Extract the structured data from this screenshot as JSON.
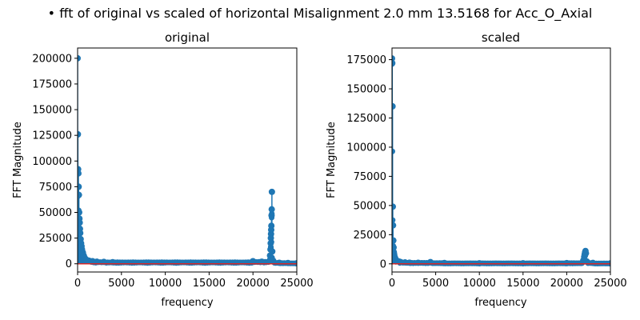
{
  "suptitle": "• fft of original vs scaled of horizontal Misalignment 2.0 mm 13.5168 for Acc_O_Axial",
  "colors": {
    "stem": "#1f77b4",
    "baseline": "#d62728",
    "axis": "#000000"
  },
  "chart_data": [
    {
      "type": "stem",
      "title": "original",
      "xlabel": "frequency",
      "ylabel": "FFT Magnitude",
      "xlim": [
        0,
        25000
      ],
      "ylim": [
        -8000,
        210000
      ],
      "xticks": [
        0,
        5000,
        10000,
        15000,
        20000,
        25000
      ],
      "yticks": [
        0,
        25000,
        50000,
        75000,
        100000,
        125000,
        150000,
        175000,
        200000
      ],
      "x": [
        0,
        30,
        60,
        90,
        120,
        150,
        180,
        210,
        240,
        270,
        300,
        350,
        400,
        450,
        500,
        600,
        700,
        800,
        1000,
        1300,
        1700,
        2200,
        3000,
        4000,
        20000,
        21000,
        21900,
        21950,
        22000,
        22020,
        22040,
        22060,
        22080,
        22100,
        22120,
        22140,
        22160,
        22200,
        22300,
        23000,
        24000,
        25000
      ],
      "y": [
        200000,
        126000,
        92000,
        88000,
        75000,
        67000,
        50000,
        44000,
        40000,
        34000,
        30000,
        24000,
        20000,
        17000,
        14000,
        11000,
        8000,
        6000,
        4000,
        3000,
        2500,
        2000,
        1800,
        1500,
        2500,
        2000,
        3000,
        8000,
        14000,
        20000,
        25000,
        29000,
        33000,
        37000,
        47000,
        53000,
        70000,
        12000,
        3000,
        1000,
        800,
        500
      ]
    },
    {
      "type": "stem",
      "title": "scaled",
      "xlabel": "frequency",
      "ylabel": "FFT Magnitude",
      "xlim": [
        0,
        25000
      ],
      "ylim": [
        -7000,
        185000
      ],
      "xticks": [
        0,
        5000,
        10000,
        15000,
        20000,
        25000
      ],
      "yticks": [
        0,
        25000,
        50000,
        75000,
        100000,
        125000,
        150000,
        175000
      ],
      "x": [
        0,
        30,
        60,
        90,
        120,
        150,
        180,
        210,
        250,
        300,
        350,
        400,
        500,
        600,
        800,
        1000,
        1500,
        2000,
        3000,
        4400,
        6000,
        10000,
        15000,
        20000,
        21900,
        22000,
        22050,
        22100,
        22150,
        22200,
        22300,
        23000,
        25000
      ],
      "y": [
        176000,
        172000,
        135000,
        49000,
        33000,
        20000,
        14000,
        10000,
        8000,
        6000,
        5000,
        4000,
        3000,
        2500,
        2000,
        1500,
        1200,
        1000,
        900,
        1500,
        700,
        500,
        500,
        600,
        3000,
        6000,
        8000,
        10000,
        11000,
        9000,
        2000,
        800,
        400
      ]
    }
  ]
}
